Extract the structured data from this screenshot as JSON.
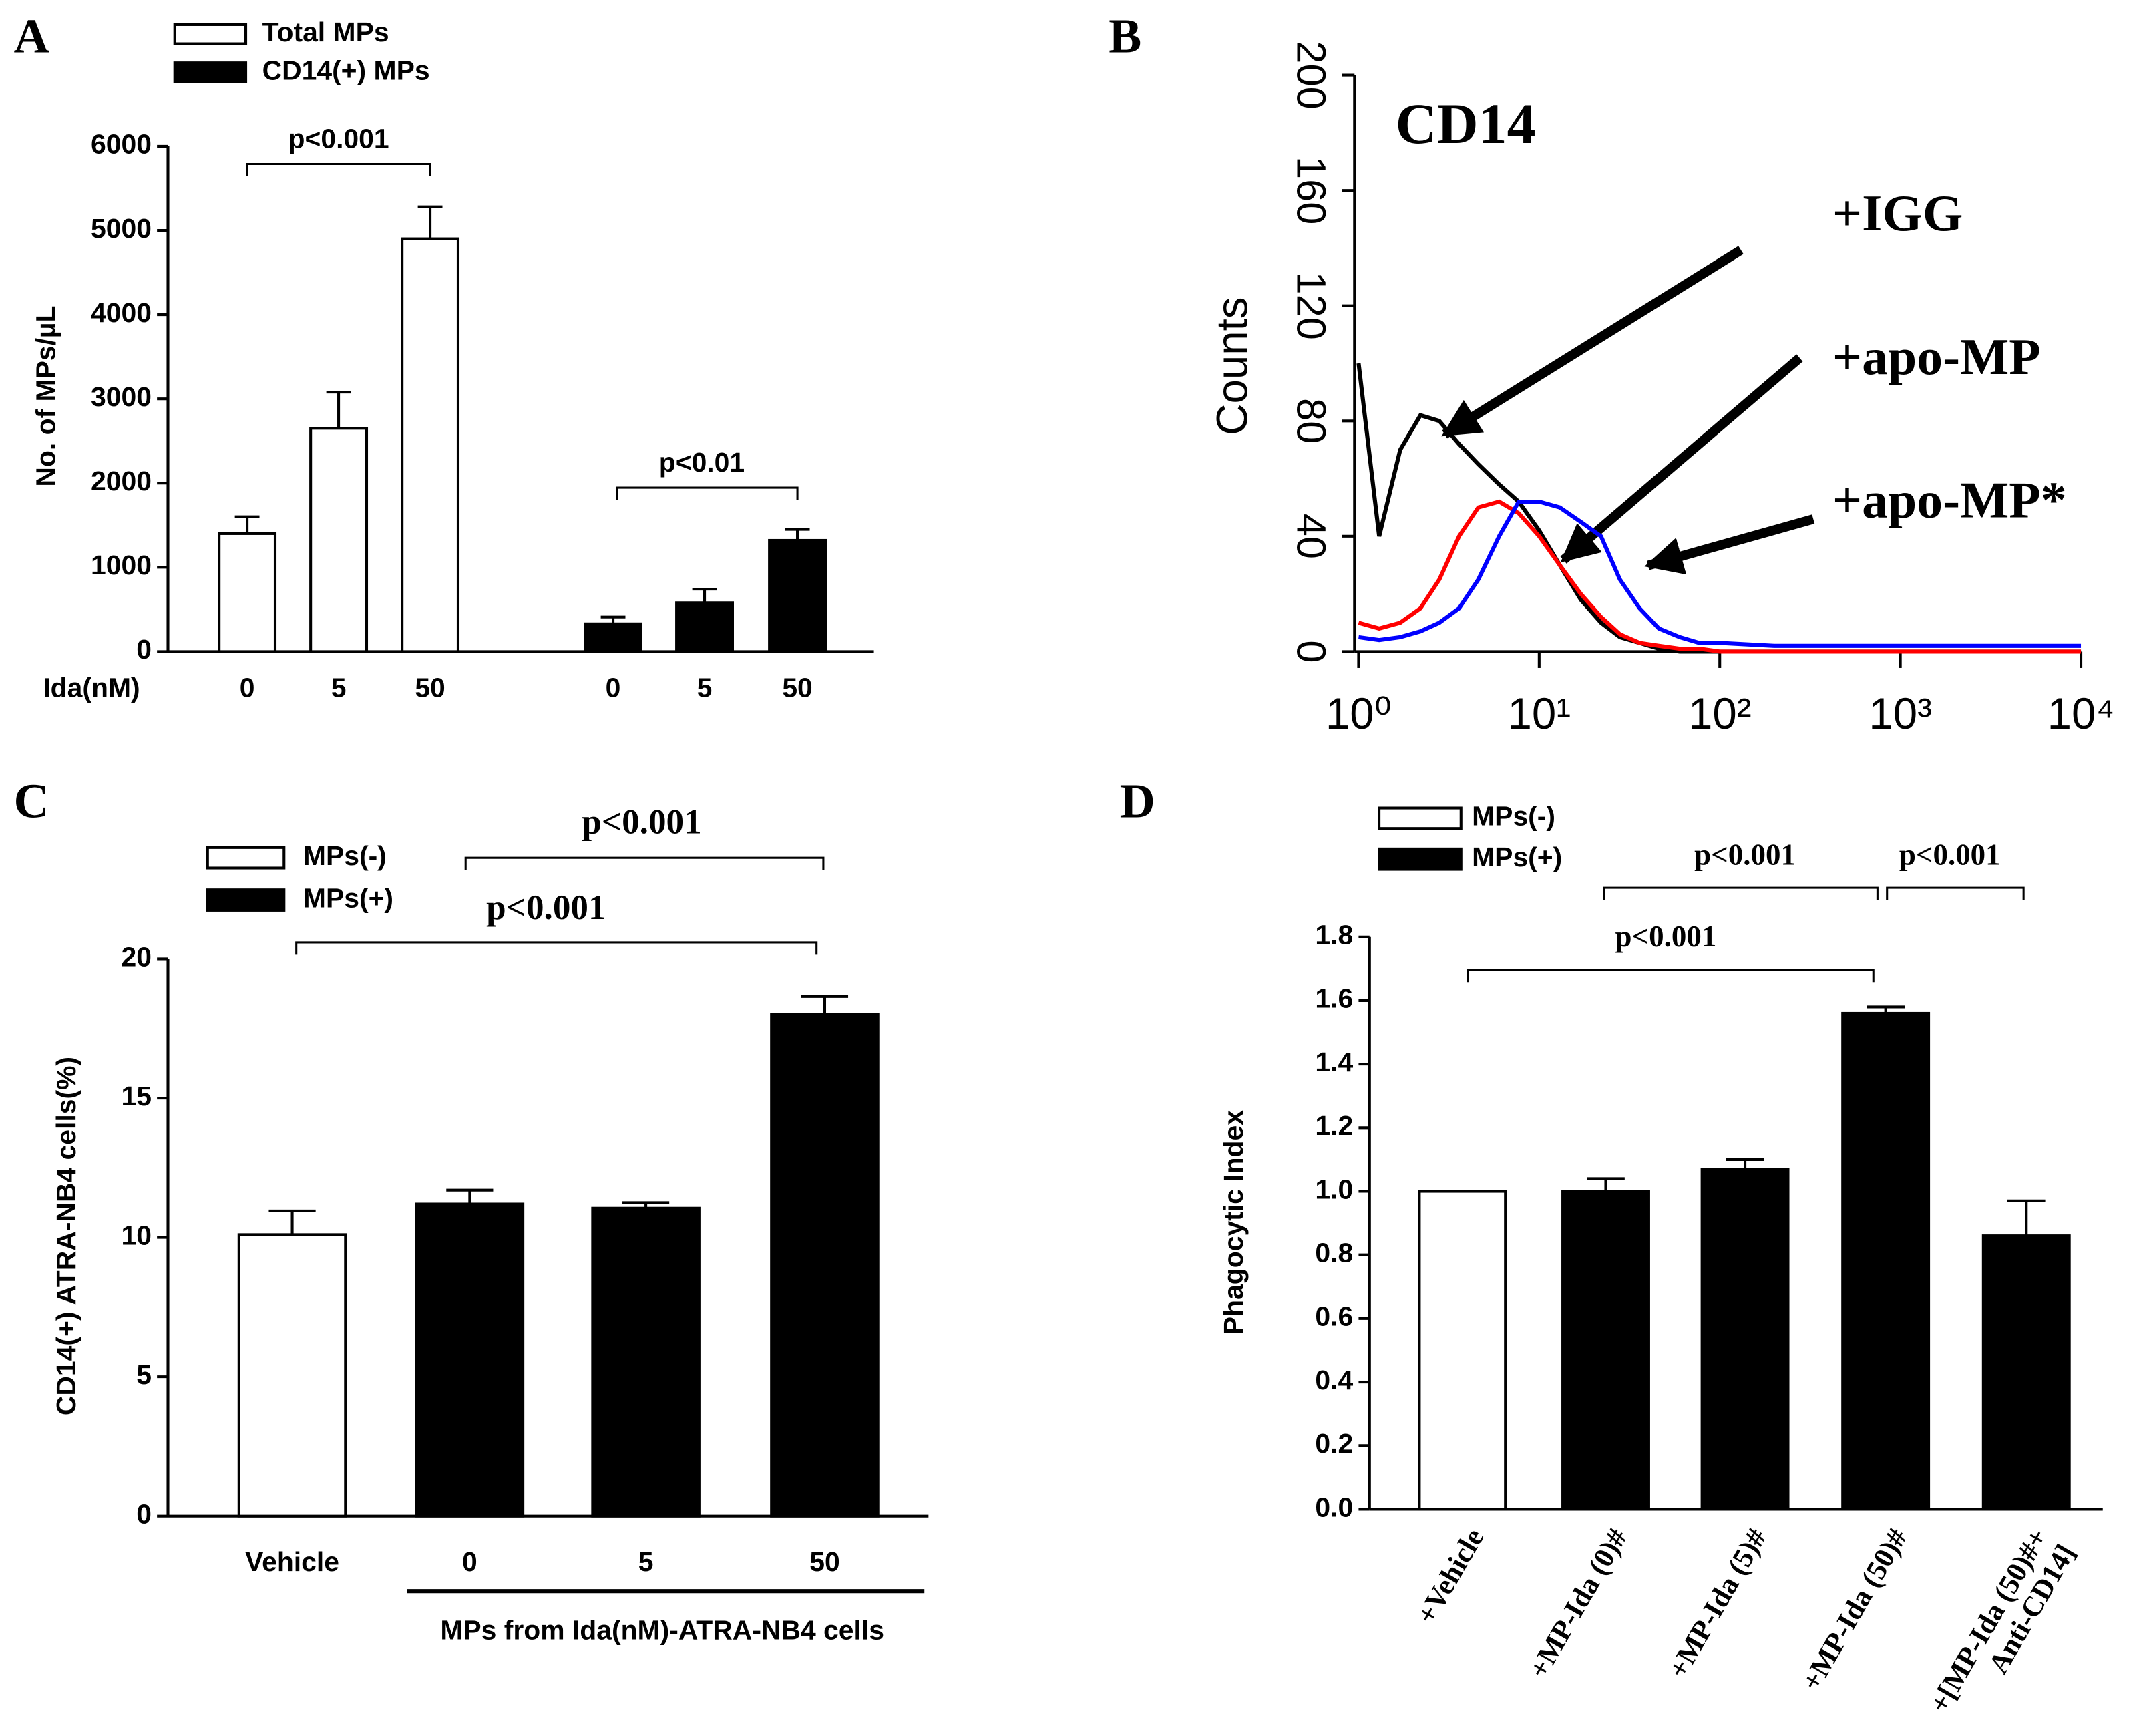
{
  "chart_data": [
    {
      "type": "bar",
      "panel": "A",
      "ylabel": "No. of MPs/µL",
      "xlabel": "Ida(nM)",
      "categories": [
        "0",
        "5",
        "50",
        "0",
        "5",
        "50"
      ],
      "series": [
        {
          "name": "Total MPs",
          "color": "#ffffff",
          "values": [
            1400,
            2650,
            4900,
            null,
            null,
            null
          ],
          "errors": [
            200,
            430,
            380,
            null,
            null,
            null
          ]
        },
        {
          "name": "CD14(+) MPs",
          "color": "#000000",
          "values": [
            null,
            null,
            null,
            330,
            580,
            1320
          ],
          "errors": [
            null,
            null,
            null,
            80,
            160,
            130
          ]
        }
      ],
      "ylim": [
        0,
        6000
      ],
      "yticks": [
        0,
        1000,
        2000,
        3000,
        4000,
        5000,
        6000
      ],
      "annotations": [
        "p<0.001",
        "p<0.01"
      ]
    },
    {
      "type": "line",
      "panel": "B",
      "title": "CD14",
      "ylabel": "Counts",
      "xscale": "log",
      "x": [
        1,
        1.3,
        1.7,
        2.2,
        2.8,
        3.6,
        4.6,
        6,
        7.7,
        10,
        13,
        17,
        22,
        28,
        36,
        46,
        60,
        77,
        100,
        200,
        500,
        1000,
        10000
      ],
      "series": [
        {
          "name": "+IGG",
          "color": "#000000",
          "values": [
            100,
            40,
            70,
            82,
            80,
            72,
            65,
            58,
            52,
            42,
            30,
            18,
            10,
            5,
            3,
            1,
            0,
            0,
            0,
            0,
            0,
            0,
            0
          ]
        },
        {
          "name": "+apo-MP",
          "color": "#ff0000",
          "values": [
            10,
            8,
            10,
            15,
            25,
            40,
            50,
            52,
            48,
            40,
            30,
            20,
            12,
            6,
            3,
            2,
            1,
            1,
            0,
            0,
            0,
            0,
            0
          ]
        },
        {
          "name": "+apo-MP*",
          "color": "#0000ff",
          "values": [
            5,
            4,
            5,
            7,
            10,
            15,
            25,
            40,
            52,
            52,
            50,
            45,
            40,
            25,
            15,
            8,
            5,
            3,
            3,
            2,
            2,
            2,
            2
          ]
        }
      ],
      "xlim": [
        1,
        10000
      ],
      "xticks": [
        {
          "value": 1,
          "label": "10⁰"
        },
        {
          "value": 10,
          "label": "10¹"
        },
        {
          "value": 100,
          "label": "10²"
        },
        {
          "value": 1000,
          "label": "10³"
        },
        {
          "value": 10000,
          "label": "10⁴"
        }
      ],
      "ylim": [
        0,
        200
      ],
      "yticks": [
        0,
        40,
        80,
        120,
        160,
        200
      ]
    },
    {
      "type": "bar",
      "panel": "C",
      "ylabel": "CD14(+) ATRA-NB4 cells(%)",
      "xlabel": "MPs from Ida(nM)-ATRA-NB4 cells",
      "categories": [
        "Vehicle",
        "0",
        "5",
        "50"
      ],
      "series": [
        {
          "name": "MPs(-)",
          "color": "#ffffff",
          "values": [
            10.1,
            null,
            null,
            null
          ],
          "errors": [
            0.85,
            null,
            null,
            null
          ]
        },
        {
          "name": "MPs(+)",
          "color": "#000000",
          "values": [
            null,
            11.2,
            11.05,
            18.0
          ],
          "errors": [
            null,
            0.5,
            0.2,
            0.65
          ]
        }
      ],
      "ylim": [
        0,
        20
      ],
      "yticks": [
        0,
        5,
        10,
        15,
        20
      ],
      "annotations": [
        "p<0.001",
        "p<0.001"
      ]
    },
    {
      "type": "bar",
      "panel": "D",
      "ylabel": "Phagocytic Index",
      "categories": [
        "+Vehicle",
        "+MP-Ida (0)#",
        "+MP-Ida (5)#",
        "+MP-Ida (50)#",
        "+[MP-Ida (50)#+\nAnti-CD14]"
      ],
      "series": [
        {
          "name": "MPs(-)",
          "color": "#ffffff",
          "values": [
            1.0,
            null,
            null,
            null,
            null
          ],
          "errors": [
            null,
            null,
            null,
            null,
            null
          ]
        },
        {
          "name": "MPs(+)",
          "color": "#000000",
          "values": [
            null,
            1.0,
            1.07,
            1.56,
            0.86
          ],
          "errors": [
            null,
            0.04,
            0.03,
            0.02,
            0.11
          ]
        }
      ],
      "ylim": [
        0,
        1.8
      ],
      "yticks": [
        {
          "value": 0,
          "label": "0.0"
        },
        0.2,
        0.4,
        0.6,
        0.8,
        {
          "value": 1,
          "label": "1.0"
        },
        1.2,
        1.4,
        1.6,
        1.8
      ],
      "annotations": [
        "p<0.001",
        "p<0.001",
        "p<0.001"
      ]
    }
  ]
}
